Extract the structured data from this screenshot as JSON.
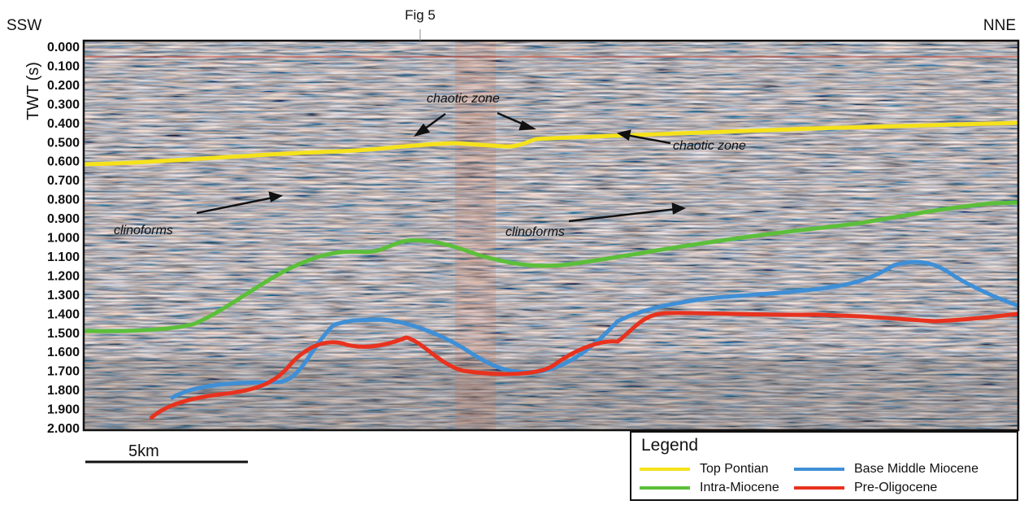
{
  "figure": {
    "direction_left": "SSW",
    "direction_right": "NNE",
    "fig_reference": "Fig 5",
    "y_axis_label": "TWT (s)",
    "y_ticks": [
      "0.000",
      "0.100",
      "0.200",
      "0.300",
      "0.400",
      "0.500",
      "0.600",
      "0.700",
      "0.800",
      "0.900",
      "1.000",
      "1.100",
      "1.200",
      "1.300",
      "1.400",
      "1.500",
      "1.600",
      "1.700",
      "1.800",
      "1.900",
      "2.000"
    ],
    "scale_bar_label": "5km",
    "annotations": {
      "chaotic_zone_1": "chaotic zone",
      "chaotic_zone_2": "chaotic zone",
      "clinoforms_1": "clinoforms",
      "clinoforms_2": "clinoforms"
    }
  },
  "legend": {
    "title": "Legend",
    "items": [
      {
        "label": "Top Pontian",
        "color": "#f5e21b"
      },
      {
        "label": "Base Middle Miocene",
        "color": "#3f8fd6"
      },
      {
        "label": "Intra-Miocene",
        "color": "#5cbf3a"
      },
      {
        "label": "Pre-Oligocene",
        "color": "#e8321e"
      }
    ]
  },
  "horizons": {
    "top_pontian": {
      "color": "#f5e21b"
    },
    "intra_miocene": {
      "color": "#5cbf3a"
    },
    "base_middle_miocene": {
      "color": "#3f8fd6"
    },
    "pre_oligocene": {
      "color": "#e8321e"
    }
  }
}
